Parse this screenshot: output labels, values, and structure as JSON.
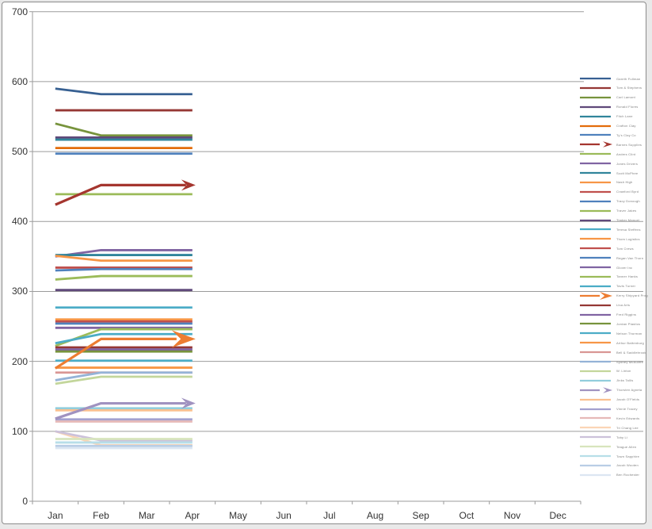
{
  "chart_data": {
    "type": "line",
    "title": "",
    "xlabel": "",
    "ylabel": "",
    "categories": [
      "Jan",
      "Feb",
      "Mar",
      "Apr",
      "May",
      "Jun",
      "Jul",
      "Aug",
      "Sep",
      "Oct",
      "Nov",
      "Dec"
    ],
    "y_axis": {
      "min": 0,
      "max": 700,
      "step": 100,
      "tick_labels": [
        "0",
        "100",
        "200",
        "300",
        "400",
        "500",
        "600",
        "700"
      ]
    },
    "grid": true,
    "legend_position": "right",
    "data_span_note": "series have data Jan through Apr only",
    "axis_color": "#9b9b9b",
    "label_color": "#333333",
    "legend_text_color": "#7f7f7f",
    "series": [
      {
        "name": "Gareth Fullman",
        "color": "#376092",
        "values": [
          590,
          582,
          582,
          582
        ]
      },
      {
        "name": "Tom & Stephens",
        "color": "#953734",
        "values": [
          559,
          559,
          559,
          559
        ]
      },
      {
        "name": "Carl Lamont",
        "color": "#77933C",
        "values": [
          540,
          523,
          523,
          523
        ]
      },
      {
        "name": "Ronald Flores",
        "color": "#5F497A",
        "values": [
          520,
          520,
          520,
          520
        ]
      },
      {
        "name": "Fitch Lane",
        "color": "#31859B",
        "values": [
          517,
          517,
          517,
          517
        ]
      },
      {
        "name": "Crafton Clay",
        "color": "#E36C0A",
        "values": [
          505,
          505,
          505,
          505
        ]
      },
      {
        "name": "Ty's Clay Co",
        "color": "#4F81BD",
        "values": [
          497,
          497,
          497,
          497
        ]
      },
      {
        "name": "Barnes Supplies",
        "color": "#A5362F",
        "values": [
          424,
          452,
          452,
          452
        ],
        "arrow": "medium"
      },
      {
        "name": "Anders Clint",
        "color": "#9BBB59",
        "values": [
          439,
          439,
          439,
          439
        ]
      },
      {
        "name": "Jones Drivers",
        "color": "#8064A2",
        "values": [
          350,
          359,
          359,
          359
        ]
      },
      {
        "name": "Scott McPhee",
        "color": "#31859B",
        "values": [
          352,
          352,
          352,
          352
        ]
      },
      {
        "name": "Nash High",
        "color": "#F79646",
        "values": [
          351,
          344,
          344,
          344
        ]
      },
      {
        "name": "Crawford Byrd",
        "color": "#C0504D",
        "values": [
          334,
          334,
          334,
          334
        ]
      },
      {
        "name": "Tracy Donough",
        "color": "#4F81BD",
        "values": [
          330,
          332,
          332,
          332
        ]
      },
      {
        "name": "Traver Jakes",
        "color": "#9BBB59",
        "values": [
          317,
          322,
          322,
          322
        ]
      },
      {
        "name": "Timber Manuel",
        "color": "#604A7B",
        "values": [
          302,
          302,
          302,
          302
        ]
      },
      {
        "name": "Teresa Steffens",
        "color": "#4BACC6",
        "values": [
          277,
          277,
          277,
          277
        ]
      },
      {
        "name": "Thom Logistics",
        "color": "#F79646",
        "values": [
          260,
          260,
          260,
          260
        ]
      },
      {
        "name": "Tom Crews",
        "color": "#C0504D",
        "values": [
          257,
          257,
          257,
          257
        ]
      },
      {
        "name": "Regan Van Thorn",
        "color": "#4F81BD",
        "values": [
          254,
          254,
          254,
          254
        ]
      },
      {
        "name": "Glover Inc",
        "color": "#8064A2",
        "values": [
          248,
          248,
          248,
          248
        ]
      },
      {
        "name": "Tanner Hanks",
        "color": "#9BBB59",
        "values": [
          222,
          246,
          246,
          246
        ]
      },
      {
        "name": "Tavis Turner",
        "color": "#4BACC6",
        "values": [
          226,
          239,
          239,
          239
        ]
      },
      {
        "name": "Kerry Shipyard Prog",
        "color": "#ED7D31",
        "values": [
          190,
          232,
          232,
          232
        ],
        "arrow": "large"
      },
      {
        "name": "Lisa Arts",
        "color": "#953734",
        "values": [
          220,
          220,
          220,
          220
        ]
      },
      {
        "name": "Fred Riggins",
        "color": "#8064A2",
        "values": [
          217,
          217,
          217,
          217
        ]
      },
      {
        "name": "Jordan Plastics",
        "color": "#77933C",
        "values": [
          214,
          214,
          214,
          214
        ]
      },
      {
        "name": "Nelson Thurman",
        "color": "#4BACC6",
        "values": [
          201,
          201,
          201,
          201
        ]
      },
      {
        "name": "Arthur Battenburg",
        "color": "#F79646",
        "values": [
          191,
          191,
          191,
          191
        ]
      },
      {
        "name": "Bell & Saddlebrook",
        "color": "#D99694",
        "values": [
          184,
          184,
          184,
          184
        ]
      },
      {
        "name": "Sydney McAuliffe",
        "color": "#95B3D7",
        "values": [
          173,
          184,
          184,
          184
        ]
      },
      {
        "name": "W. Linton",
        "color": "#C3D69B",
        "values": [
          168,
          178,
          178,
          178
        ]
      },
      {
        "name": "Jinks Tallis",
        "color": "#92CDDC",
        "values": [
          133,
          133,
          133,
          133
        ]
      },
      {
        "name": "Thorsten Agneta",
        "color": "#A092C0",
        "values": [
          118,
          140,
          140,
          140
        ],
        "arrow": "medium"
      },
      {
        "name": "Jacob O'Fields",
        "color": "#FAC090",
        "values": [
          130,
          130,
          130,
          130
        ]
      },
      {
        "name": "Vinnie Tracey",
        "color": "#A3A0CF",
        "values": [
          117,
          117,
          117,
          117
        ]
      },
      {
        "name": "Kevin Edwards",
        "color": "#E6B9B8",
        "values": [
          114,
          114,
          114,
          114
        ]
      },
      {
        "name": "Tri Chang Lee",
        "color": "#FBD5B5",
        "values": [
          100,
          80,
          80,
          80
        ]
      },
      {
        "name": "Toby Li",
        "color": "#CCC1DA",
        "values": [
          100,
          87,
          87,
          87
        ]
      },
      {
        "name": "Teague Allen",
        "color": "#D7E4BD",
        "values": [
          89,
          89,
          89,
          89
        ]
      },
      {
        "name": "Town Sapphire",
        "color": "#B7DEE8",
        "values": [
          84,
          84,
          84,
          84
        ]
      },
      {
        "name": "Jacob Wooten",
        "color": "#B9CDE5",
        "values": [
          79,
          79,
          79,
          79
        ]
      },
      {
        "name": "Ben Rochester",
        "color": "#DCE6F2",
        "values": [
          76,
          76,
          76,
          76
        ]
      }
    ]
  }
}
